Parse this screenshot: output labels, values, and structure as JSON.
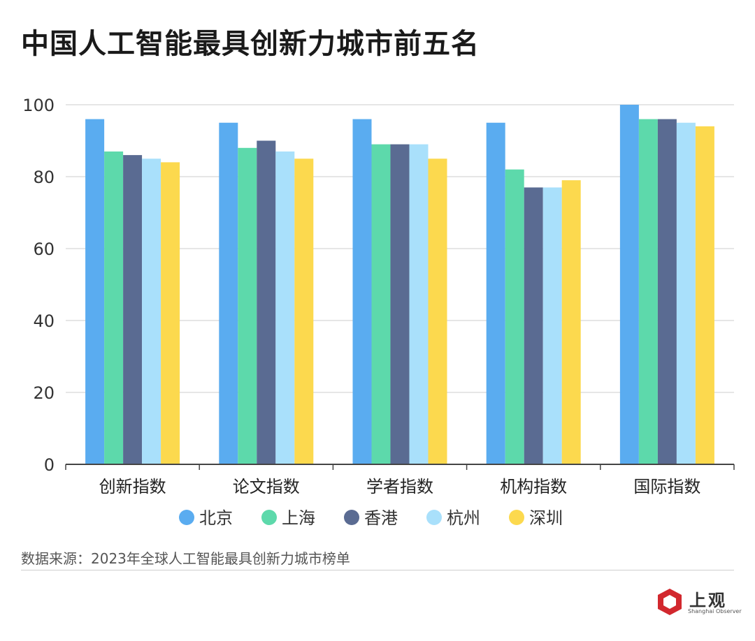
{
  "header": {
    "title": "中国人工智能最具创新力城市前五名"
  },
  "chart_data": {
    "type": "bar",
    "title": "中国人工智能最具创新力城市前五名",
    "xlabel": "",
    "ylabel": "",
    "ylim": [
      0,
      100
    ],
    "yticks": [
      0,
      20,
      40,
      60,
      80,
      100
    ],
    "grid": true,
    "legend_position": "bottom",
    "categories": [
      "创新指数",
      "论文指数",
      "学者指数",
      "机构指数",
      "国际指数"
    ],
    "series": [
      {
        "name": "北京",
        "color": "#5aacf0",
        "values": [
          96,
          95,
          96,
          95,
          100
        ]
      },
      {
        "name": "上海",
        "color": "#5dd9ab",
        "values": [
          87,
          88,
          89,
          82,
          96
        ]
      },
      {
        "name": "香港",
        "color": "#5a6b92",
        "values": [
          86,
          90,
          89,
          77,
          96
        ]
      },
      {
        "name": "杭州",
        "color": "#a9e0fb",
        "values": [
          85,
          87,
          89,
          77,
          95
        ]
      },
      {
        "name": "深圳",
        "color": "#fcd94e",
        "values": [
          84,
          85,
          85,
          79,
          94
        ]
      }
    ]
  },
  "footer": {
    "source": "数据来源：2023年全球人工智能最具创新力城市榜单"
  },
  "logo": {
    "text_cn": "上观",
    "text_en": "Shanghai Observer",
    "color": "#d2282e"
  }
}
